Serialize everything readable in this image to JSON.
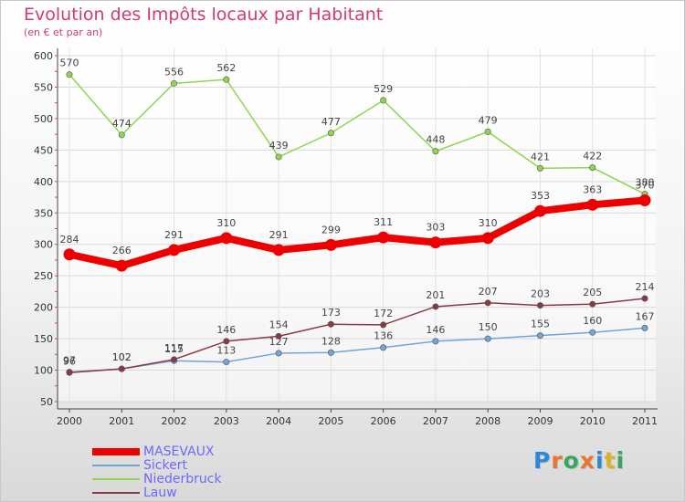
{
  "header": {
    "title": "Evolution des Impôts locaux par Habitant",
    "subtitle": "(en € et par an)"
  },
  "logo": {
    "text": "Proxiti",
    "letters": [
      "P",
      "r",
      "o",
      "x",
      "i",
      "t",
      "i"
    ],
    "colors": [
      "#2e86d6",
      "#e8762d",
      "#3aa55d",
      "#e8762d",
      "#2e86d6",
      "#d8b22c",
      "#3aa55d"
    ]
  },
  "chart_data": {
    "type": "line",
    "title": "Evolution des Impôts locaux par Habitant",
    "subtitle": "(en € et par an)",
    "xlabel": "",
    "ylabel": "",
    "ylim": [
      50,
      600
    ],
    "yticks": [
      50,
      100,
      150,
      200,
      250,
      300,
      350,
      400,
      450,
      500,
      550,
      600
    ],
    "grid": true,
    "x": [
      "2000",
      "2001",
      "2002",
      "2003",
      "2004",
      "2005",
      "2006",
      "2007",
      "2008",
      "2009",
      "2010",
      "2011"
    ],
    "series": [
      {
        "name": "Niederbruck",
        "color": "#8fd64f",
        "emphasis": false,
        "values": [
          570,
          474,
          556,
          562,
          439,
          477,
          529,
          448,
          479,
          421,
          422,
          380
        ]
      },
      {
        "name": "Sickert",
        "color": "#6fa6d6",
        "emphasis": false,
        "values": [
          97,
          102,
          115,
          113,
          127,
          128,
          136,
          146,
          150,
          155,
          160,
          167
        ]
      },
      {
        "name": "Lauw",
        "color": "#8a3a44",
        "emphasis": false,
        "values": [
          96,
          102,
          117,
          146,
          154,
          173,
          172,
          201,
          207,
          203,
          205,
          214
        ]
      },
      {
        "name": "MASEVAUX",
        "color": "#ee0000",
        "emphasis": true,
        "values": [
          284,
          266,
          291,
          310,
          291,
          299,
          311,
          303,
          310,
          353,
          363,
          370
        ]
      }
    ],
    "legend": {
      "position": "bottom-left",
      "order": [
        "MASEVAUX",
        "Sickert",
        "Niederbruck",
        "Lauw"
      ]
    }
  }
}
